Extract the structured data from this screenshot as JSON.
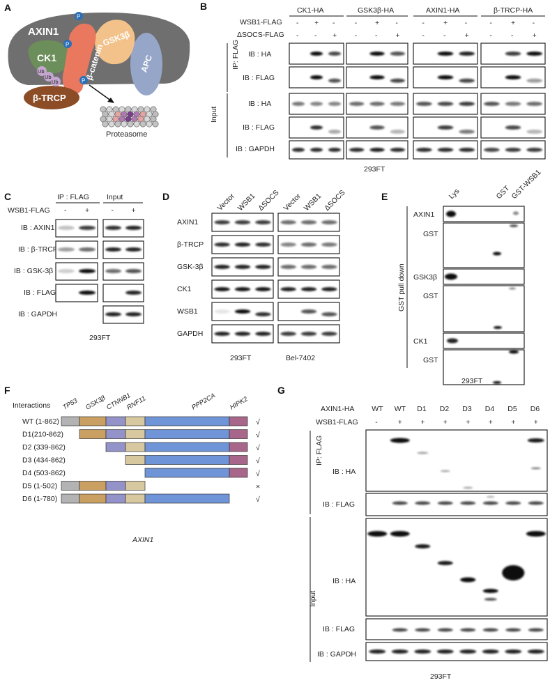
{
  "panels": {
    "A": {
      "letter": "A",
      "proteins": [
        "AXIN1",
        "CK1",
        "β-catenin",
        "GSK3β",
        "APC",
        "β-TRCP"
      ],
      "phospho_label": "P",
      "ubiquitin_label": "Ub",
      "proteasome_label": "Proteasome",
      "colors": {
        "axin": "#6f6f6f",
        "ck1": "#6b8e5a",
        "bcat": "#e9785e",
        "gsk": "#f2c28a",
        "apc": "#96a6c8",
        "btrcp": "#8b4c26",
        "phospho": "#2c6fb7",
        "ub": "#c4a6cf"
      }
    },
    "B": {
      "letter": "B",
      "groups": [
        "CK1-HA",
        "GSK3β-HA",
        "AXIN1-HA",
        "β-TRCP-HA"
      ],
      "row1_label": "WSB1-FLAG",
      "row2_label": "ΔSOCS-FLAG",
      "row1_signs": [
        "-",
        "+",
        "-"
      ],
      "row2_signs": [
        "-",
        "-",
        "+"
      ],
      "section_ip": "IP: FLAG",
      "section_input": "Input",
      "blots": [
        "IB : HA",
        "IB : FLAG",
        "IB : HA",
        "IB : FLAG",
        "IB : GAPDH"
      ],
      "cell_line": "293FT"
    },
    "C": {
      "letter": "C",
      "header_ip": "IP : FLAG",
      "header_input": "Input",
      "row_label": "WSB1-FLAG",
      "signs": [
        "-",
        "+",
        "-",
        "+"
      ],
      "blots": [
        "IB : AXIN1",
        "IB : β-TRCP",
        "IB : GSK-3β",
        "IB : FLAG",
        "IB : GAPDH"
      ],
      "cell_line": "293FT"
    },
    "D": {
      "letter": "D",
      "lanes": [
        "Vector",
        "WSB1",
        "ΔSOCS",
        "Vector",
        "WSB1",
        "ΔSOCS"
      ],
      "blots": [
        "AXIN1",
        "β-TRCP",
        "GSK-3β",
        "CK1",
        "WSB1",
        "GAPDH"
      ],
      "cell_lines": [
        "293FT",
        "Bel-7402"
      ]
    },
    "E": {
      "letter": "E",
      "lanes": [
        "Lys",
        "GST",
        "GST-WSB1"
      ],
      "blots": [
        "AXIN1",
        "GST",
        "GSK3β",
        "GST",
        "CK1",
        "GST"
      ],
      "side_label": "GST pull down",
      "cell_line": "293FT"
    },
    "F": {
      "letter": "F",
      "header": "Interactions",
      "domains": [
        "TP53",
        "GSK3β",
        "CTNNB1",
        "RNF11",
        "PPP2CA",
        "HIPK2"
      ],
      "domain_colors": [
        "#b3b3b3",
        "#c9a061",
        "#9393c9",
        "#d8c8a0",
        "#6f95d8",
        "#a8668a"
      ],
      "constructs": [
        {
          "label": "WT (1-862)",
          "mark": "√"
        },
        {
          "label": "D1(210-862)",
          "mark": "√"
        },
        {
          "label": "D2 (339-862)",
          "mark": "√"
        },
        {
          "label": "D3 (434-862)",
          "mark": "√"
        },
        {
          "label": "D4 (503-862)",
          "mark": "√"
        },
        {
          "label": "D5 (1-502)",
          "mark": "×"
        },
        {
          "label": "D6 (1-780)",
          "mark": "√"
        }
      ],
      "caption": "AXIN1"
    },
    "G": {
      "letter": "G",
      "row1_label": "AXIN1-HA",
      "row2_label": "WSB1-FLAG",
      "lanes": [
        "WT",
        "WT",
        "D1",
        "D2",
        "D3",
        "D4",
        "D5",
        "D6"
      ],
      "signs": [
        "-",
        "+",
        "+",
        "+",
        "+",
        "+",
        "+",
        "+"
      ],
      "section_ip": "IP: FLAG",
      "section_input": "Input",
      "blots": [
        "IB : HA",
        "IB : FLAG",
        "IB : HA",
        "IB : FLAG",
        "IB : GAPDH"
      ],
      "cell_line": "293FT"
    }
  }
}
